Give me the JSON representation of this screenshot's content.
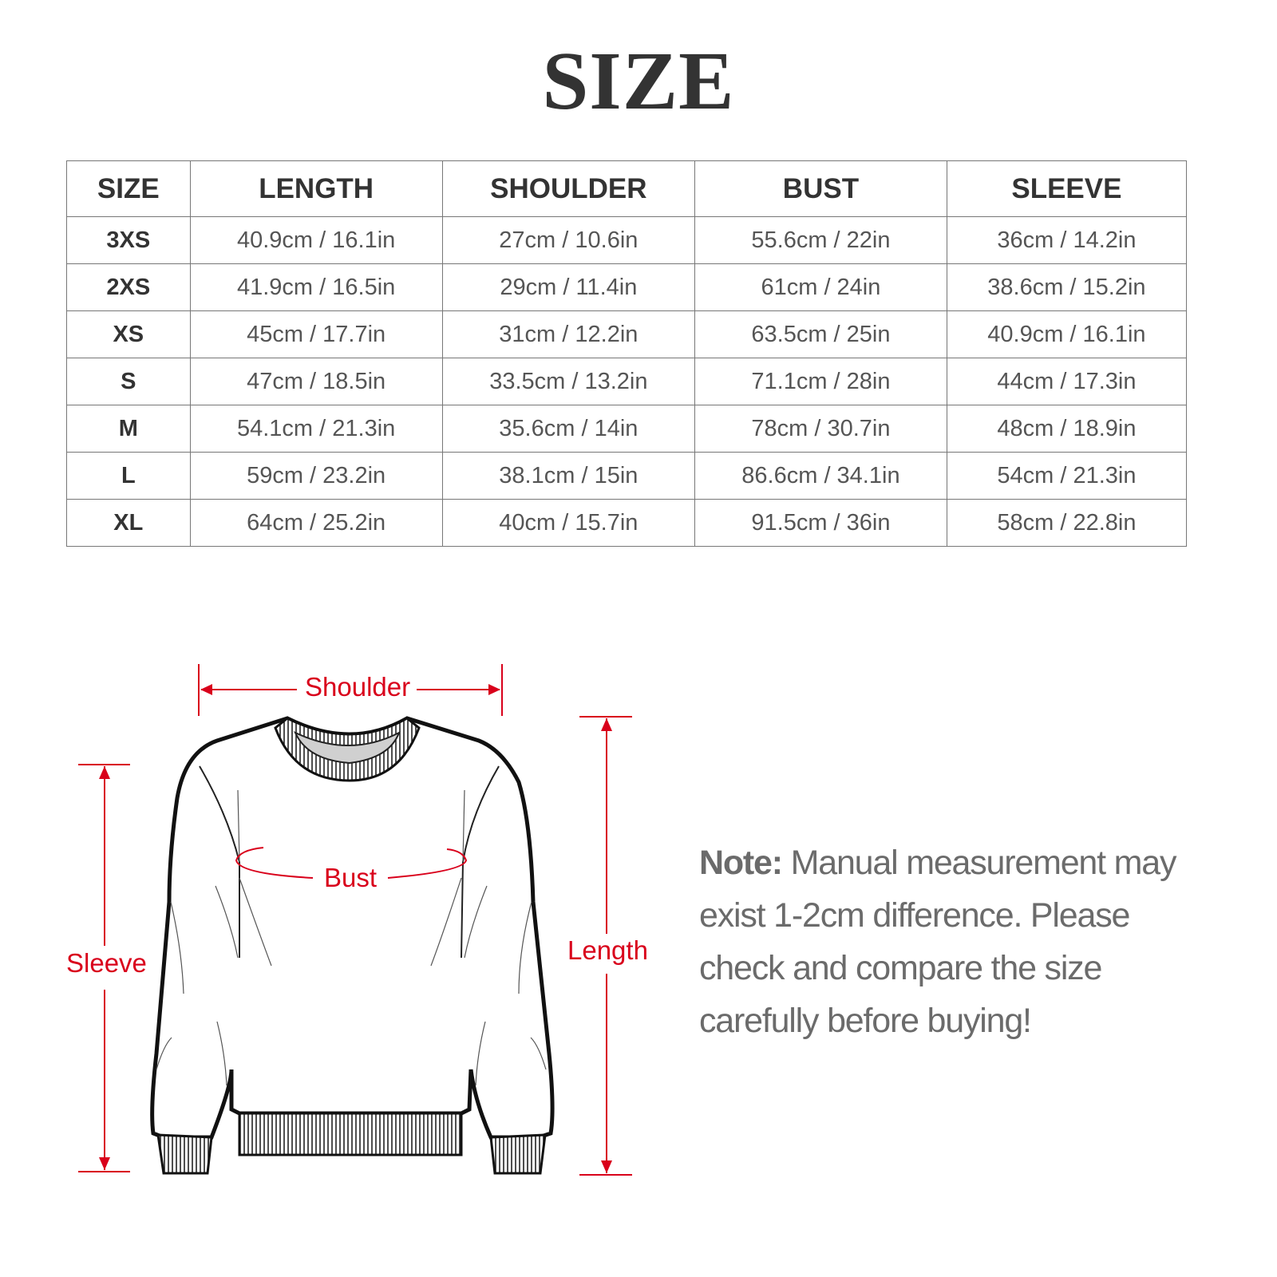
{
  "title": "SIZE",
  "table": {
    "headers": [
      "SIZE",
      "LENGTH",
      "SHOULDER",
      "BUST",
      "SLEEVE"
    ],
    "rows": [
      [
        "3XS",
        "40.9cm / 16.1in",
        "27cm / 10.6in",
        "55.6cm / 22in",
        "36cm / 14.2in"
      ],
      [
        "2XS",
        "41.9cm / 16.5in",
        "29cm / 11.4in",
        "61cm / 24in",
        "38.6cm / 15.2in"
      ],
      [
        "XS",
        "45cm / 17.7in",
        "31cm / 12.2in",
        "63.5cm / 25in",
        "40.9cm / 16.1in"
      ],
      [
        "S",
        "47cm / 18.5in",
        "33.5cm / 13.2in",
        "71.1cm / 28in",
        "44cm / 17.3in"
      ],
      [
        "M",
        "54.1cm / 21.3in",
        "35.6cm / 14in",
        "78cm / 30.7in",
        "48cm / 18.9in"
      ],
      [
        "L",
        "59cm / 23.2in",
        "38.1cm / 15in",
        "86.6cm / 34.1in",
        "54cm / 21.3in"
      ],
      [
        "XL",
        "64cm / 25.2in",
        "40cm / 15.7in",
        "91.5cm / 36in",
        "58cm / 22.8in"
      ]
    ]
  },
  "diagram": {
    "shoulder_label": "Shoulder",
    "bust_label": "Bust",
    "sleeve_label": "Sleeve",
    "length_label": "Length",
    "accent_color": "#d9001b"
  },
  "note": {
    "prefix": "Note:",
    "text": " Manual measurement may exist 1-2cm difference. Please check and compare the size carefully before buying!"
  }
}
